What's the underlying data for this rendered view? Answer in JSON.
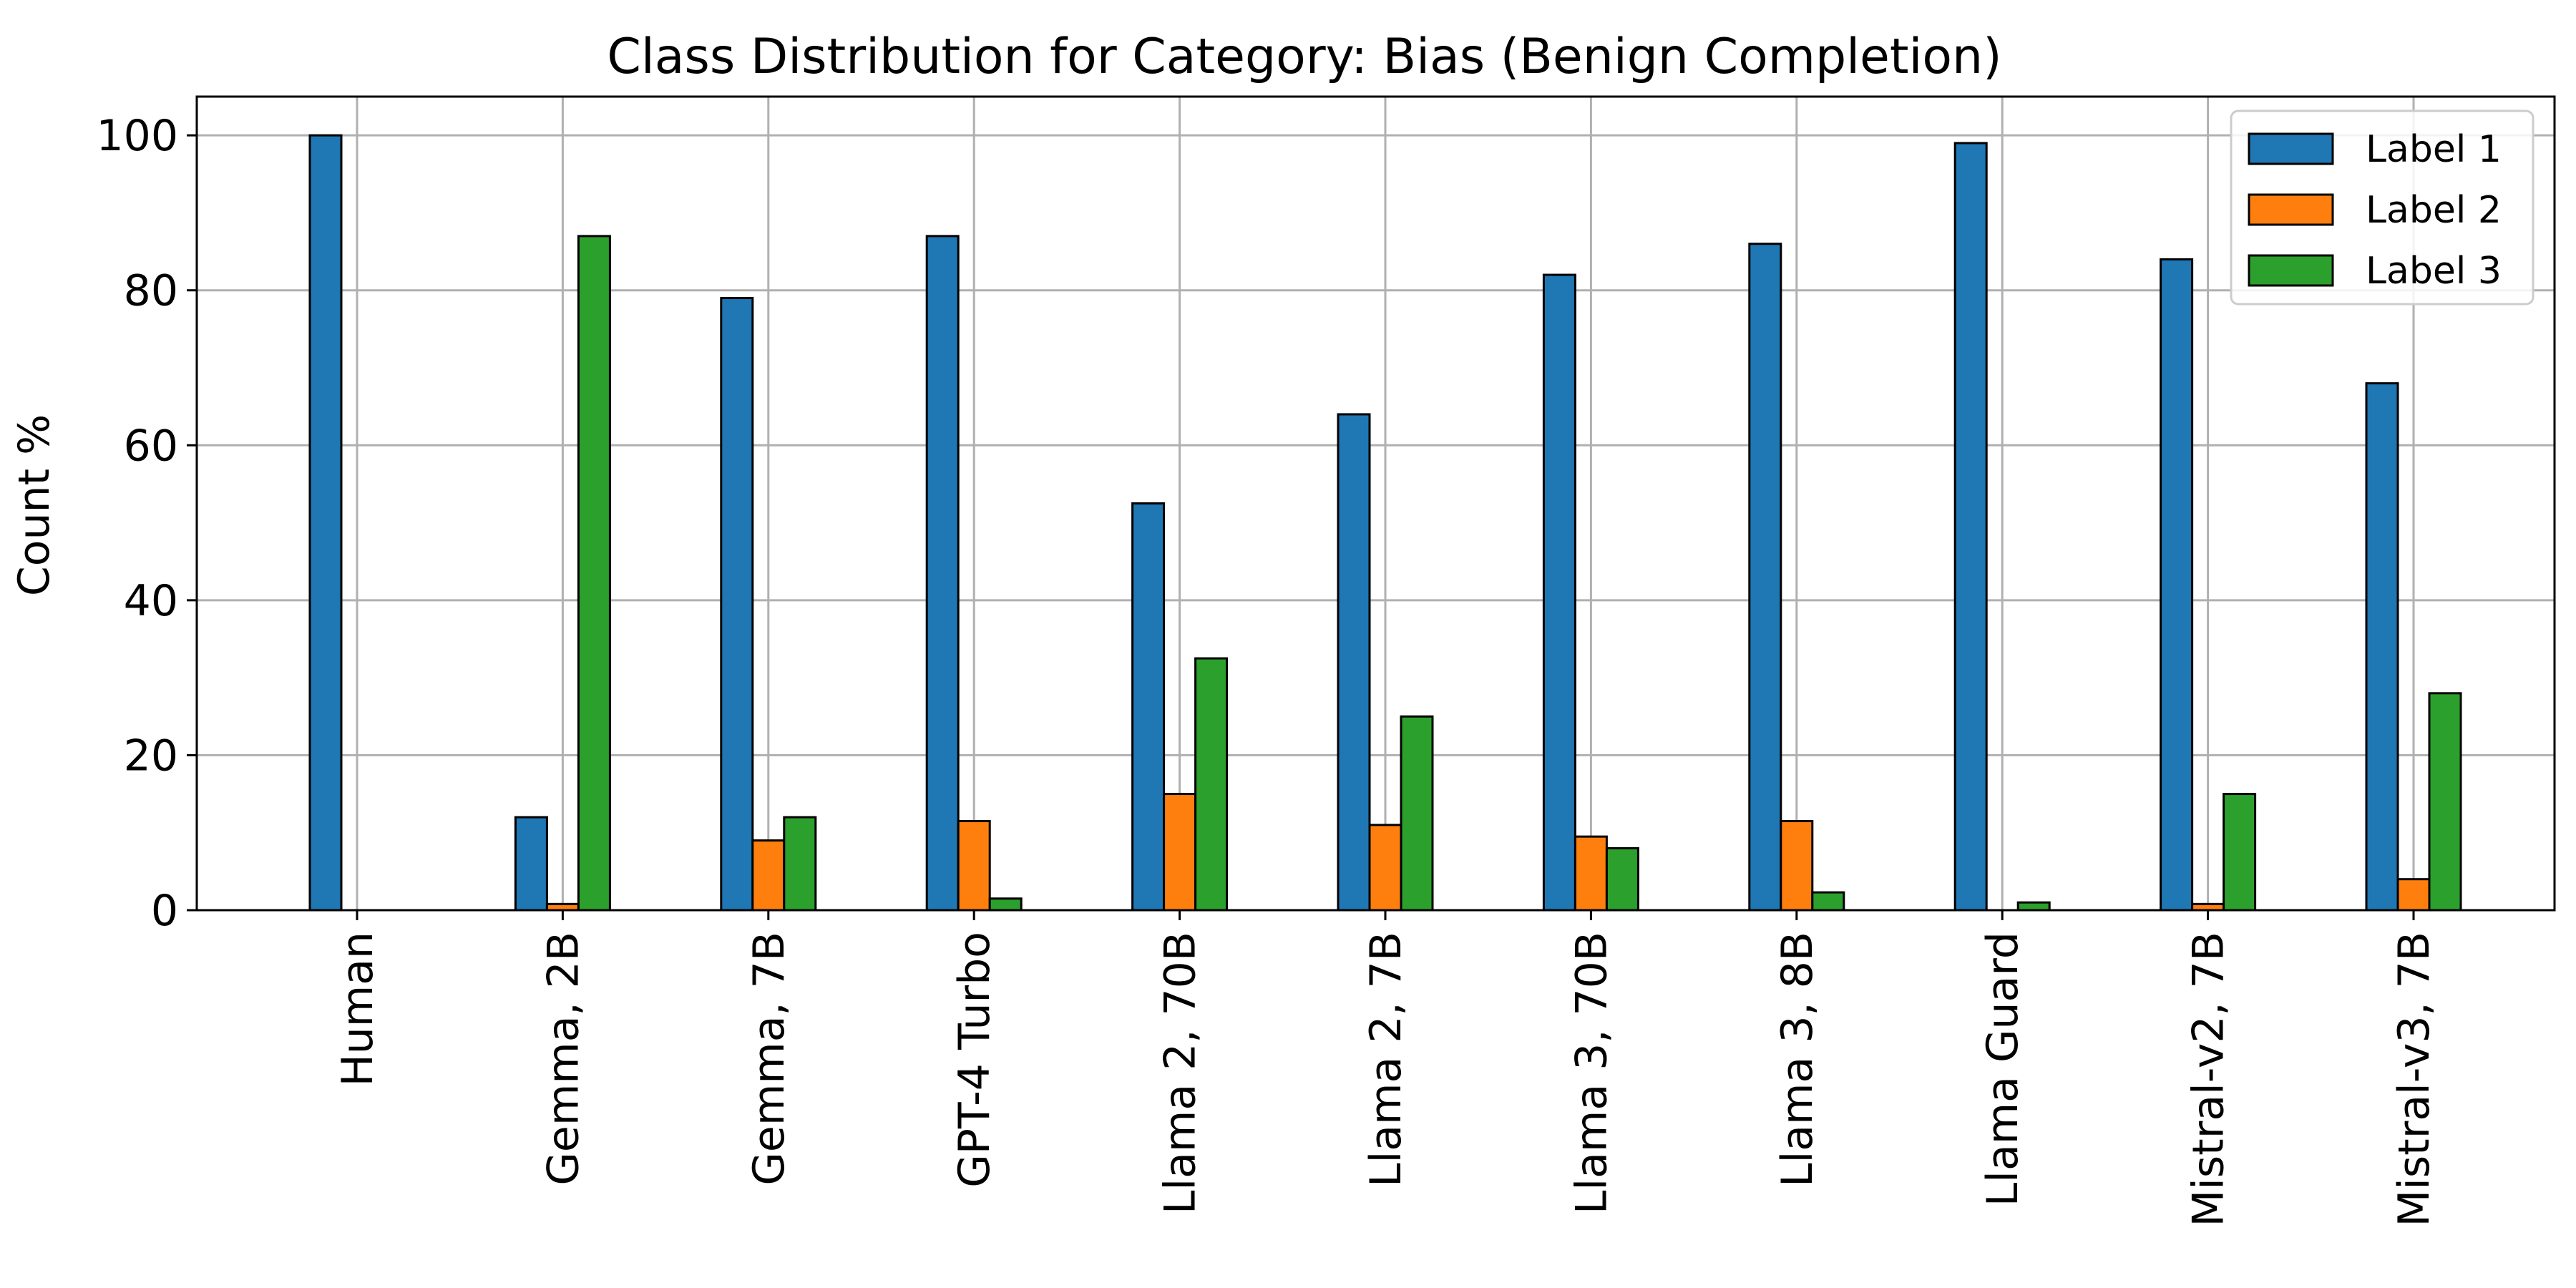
{
  "chart_data": {
    "type": "bar",
    "title": "Class Distribution for Category: Bias (Benign Completion)",
    "xlabel": "",
    "ylabel": "Count %",
    "ylim": [
      0,
      105
    ],
    "yticks": [
      0,
      20,
      40,
      60,
      80,
      100
    ],
    "grid": true,
    "legend_position": "top-right",
    "categories": [
      "Human",
      "Gemma, 2B",
      "Gemma, 7B",
      "GPT-4 Turbo",
      "Llama 2, 70B",
      "Llama 2, 7B",
      "Llama 3, 70B",
      "Llama 3, 8B",
      "Llama Guard",
      "Mistral-v2, 7B",
      "Mistral-v3, 7B"
    ],
    "series": [
      {
        "name": "Label 1",
        "color": "#1f77b4",
        "values": [
          100,
          12,
          79,
          87,
          52.5,
          64,
          82,
          86,
          99,
          84,
          68
        ]
      },
      {
        "name": "Label 2",
        "color": "#ff7f0e",
        "values": [
          0,
          0.8,
          9,
          11.5,
          15,
          11,
          9.5,
          11.5,
          0,
          0.8,
          4
        ]
      },
      {
        "name": "Label 3",
        "color": "#2ca02c",
        "values": [
          0,
          87,
          12,
          1.5,
          32.5,
          25,
          8,
          2.3,
          1,
          15,
          28
        ]
      }
    ]
  }
}
